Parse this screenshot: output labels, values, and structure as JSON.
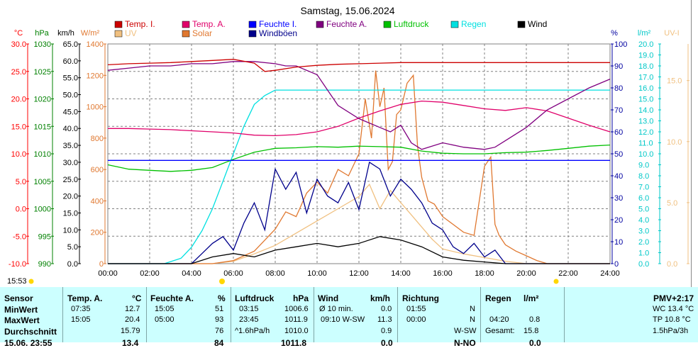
{
  "chart_data": {
    "type": "line",
    "title": "Samstag, 15.06.2024",
    "x_ticks": [
      "00:00",
      "02:00",
      "04:00",
      "06:00",
      "08:00",
      "10:00",
      "12:00",
      "14:00",
      "16:00",
      "18:00",
      "20:00",
      "22:00",
      "24:00"
    ],
    "xlim": [
      0,
      24
    ],
    "grid": true,
    "legend": [
      {
        "name": "Temp. I.",
        "color": "#cc0000"
      },
      {
        "name": "Temp. A.",
        "color": "#e0006a"
      },
      {
        "name": "Feuchte I.",
        "color": "#0000ff"
      },
      {
        "name": "Feuchte A.",
        "color": "#800080"
      },
      {
        "name": "Luftdruck",
        "color": "#00c000"
      },
      {
        "name": "Regen",
        "color": "#00e0e0"
      },
      {
        "name": "Wind",
        "color": "#000000"
      },
      {
        "name": "UV",
        "color": "#f0c080"
      },
      {
        "name": "Solar",
        "color": "#e07830"
      },
      {
        "name": "Windböen",
        "color": "#00008b"
      }
    ],
    "axes": [
      {
        "unit": "°C",
        "color": "#ff0000",
        "ticks": [
          "30.0",
          "25.0",
          "20.0",
          "15.0",
          "10.0",
          "5.0",
          "0.0",
          "-5.0",
          "-10.0"
        ],
        "ylim": [
          -10,
          30
        ]
      },
      {
        "unit": "hPa",
        "color": "#008000",
        "ticks": [
          "1030",
          "1025",
          "1020",
          "1015",
          "1010",
          "1005",
          "1000",
          "995",
          "990"
        ],
        "ylim": [
          990,
          1030
        ]
      },
      {
        "unit": "km/h",
        "color": "#000000",
        "ticks": [
          "65.0",
          "60.0",
          "55.0",
          "50.0",
          "45.0",
          "40.0",
          "35.0",
          "30.0",
          "25.0",
          "20.0",
          "15.0",
          "10.0",
          "5.0",
          "0.0"
        ],
        "ylim": [
          0,
          65
        ]
      },
      {
        "unit": "W/m²",
        "color": "#e07830",
        "ticks": [
          "1400",
          "1200",
          "1000",
          "800",
          "600",
          "400",
          "200",
          "0"
        ],
        "ylim": [
          0,
          1400
        ]
      },
      {
        "unit": "%",
        "color": "#0000a0",
        "ticks": [
          "100",
          "90",
          "80",
          "70",
          "60",
          "50",
          "40",
          "30",
          "20",
          "10",
          "0"
        ],
        "ylim": [
          0,
          100
        ]
      },
      {
        "unit": "l/m²",
        "color": "#00c8c8",
        "ticks": [
          "20.0",
          "19.0",
          "18.0",
          "17.0",
          "16.0",
          "15.0",
          "14.0",
          "13.0",
          "12.0",
          "11.0",
          "10.0",
          "9.0",
          "8.0",
          "7.0",
          "6.0",
          "5.0",
          "4.0",
          "3.0",
          "2.0",
          "1.0",
          "0.0"
        ],
        "ylim": [
          0,
          20
        ]
      },
      {
        "unit": "UV-I",
        "color": "#f0c080",
        "ticks": [
          "15.0",
          "10.0",
          "5.0",
          "0.0"
        ],
        "ylim": [
          0,
          18
        ]
      }
    ],
    "series": [
      {
        "name": "Temp. I.",
        "axis": 0,
        "x": [
          0,
          1,
          2,
          3,
          4,
          5,
          6,
          7,
          7.5,
          8,
          9,
          10,
          11,
          12,
          13,
          14,
          16,
          18,
          20,
          22,
          24
        ],
        "y": [
          26.2,
          26.4,
          26.5,
          26.6,
          26.8,
          27.0,
          27.2,
          26.5,
          25.0,
          25.2,
          25.8,
          26.1,
          26.3,
          26.4,
          26.5,
          26.6,
          26.6,
          26.6,
          26.6,
          26.6,
          26.6
        ]
      },
      {
        "name": "Temp. A.",
        "axis": 0,
        "x": [
          0,
          1,
          2,
          3,
          4,
          5,
          6,
          7,
          8,
          9,
          10,
          11,
          12,
          13,
          14,
          15,
          16,
          17,
          18,
          19,
          20,
          21,
          22,
          23,
          24
        ],
        "y": [
          14.6,
          14.6,
          14.5,
          14.4,
          14.2,
          14.0,
          13.8,
          13.4,
          13.3,
          13.5,
          14.0,
          15.0,
          16.5,
          17.8,
          19.0,
          19.6,
          19.4,
          18.8,
          18.2,
          17.9,
          18.4,
          17.8,
          16.5,
          15.2,
          14.0
        ]
      },
      {
        "name": "Feuchte I.",
        "axis": 4,
        "x": [
          0,
          2,
          4,
          6,
          8,
          10,
          12,
          14,
          16,
          18,
          20,
          22,
          24
        ],
        "y": [
          47,
          47,
          47,
          47,
          47,
          47,
          47,
          47,
          47,
          47,
          47,
          47,
          47
        ]
      },
      {
        "name": "Feuchte A.",
        "axis": 4,
        "x": [
          0,
          1,
          2,
          3,
          4,
          5,
          6,
          7,
          8,
          8.5,
          9,
          10,
          11,
          12,
          13,
          13.5,
          14,
          14.5,
          15,
          16,
          17,
          18,
          18.5,
          19,
          20,
          21,
          22,
          23,
          24
        ],
        "y": [
          88,
          89,
          90,
          90,
          91,
          91,
          92,
          92,
          91,
          90,
          90,
          86,
          72,
          66,
          62,
          60,
          63,
          55,
          52,
          55,
          53,
          52,
          53,
          56,
          62,
          70,
          75,
          80,
          84
        ]
      },
      {
        "name": "Luftdruck",
        "axis": 1,
        "x": [
          0,
          1,
          2,
          3,
          4,
          5,
          6,
          7,
          8,
          9,
          10,
          11,
          12,
          13,
          14,
          15,
          16,
          17,
          18,
          19,
          20,
          21,
          22,
          23,
          24
        ],
        "y": [
          1008,
          1007.2,
          1007,
          1006.8,
          1007,
          1007.5,
          1009,
          1010.3,
          1011,
          1011.1,
          1011.3,
          1011.2,
          1011.4,
          1011.3,
          1011.2,
          1010.5,
          1010.1,
          1010.0,
          1010.0,
          1010.2,
          1010.3,
          1010.6,
          1011.0,
          1011.4,
          1011.6
        ]
      },
      {
        "name": "Regen",
        "axis": 5,
        "x": [
          0,
          2.7,
          3.5,
          4,
          4.5,
          5,
          5.5,
          6,
          6.5,
          7,
          7.5,
          8,
          10,
          12,
          14,
          16,
          18,
          20,
          22,
          24
        ],
        "y": [
          0,
          0,
          0.5,
          1.5,
          3,
          5,
          7.5,
          10,
          12.5,
          14.5,
          15.3,
          15.8,
          15.8,
          15.8,
          15.8,
          15.8,
          15.8,
          15.8,
          15.8,
          15.8
        ]
      },
      {
        "name": "Wind",
        "axis": 2,
        "x": [
          0,
          2,
          4,
          5,
          6,
          7,
          8,
          9,
          10,
          11,
          12,
          13,
          14,
          15,
          16,
          17,
          18,
          19,
          20,
          24
        ],
        "y": [
          0,
          0,
          0,
          2,
          3,
          2,
          4,
          5,
          6,
          5,
          6,
          8,
          7,
          5,
          2,
          1,
          0.5,
          0,
          0,
          0
        ]
      },
      {
        "name": "UV",
        "axis": 6,
        "x": [
          0,
          5,
          6,
          7,
          8,
          9,
          10,
          11,
          12,
          12.5,
          13,
          13.5,
          14,
          14.5,
          15,
          15.5,
          16,
          17,
          18,
          19,
          20,
          24
        ],
        "y": [
          0,
          0,
          0.2,
          0.8,
          1.5,
          2.5,
          3.5,
          4.5,
          5.5,
          6.5,
          4.5,
          6.0,
          5.0,
          4.0,
          3.0,
          2.0,
          1.2,
          0.8,
          0.5,
          0.2,
          0,
          0
        ]
      },
      {
        "name": "Solar",
        "axis": 3,
        "x": [
          0,
          5,
          6,
          7,
          7.5,
          8,
          8.5,
          9,
          9.5,
          10,
          10.5,
          11,
          11.5,
          12,
          12.3,
          12.6,
          12.8,
          13,
          13.2,
          13.4,
          13.6,
          13.8,
          14,
          14.3,
          14.6,
          14.8,
          15,
          15.3,
          15.6,
          16,
          16.5,
          17,
          17.5,
          18,
          18.3,
          18.5,
          18.7,
          19,
          19.5,
          20,
          20.5,
          21,
          24
        ],
        "y": [
          0,
          0,
          20,
          80,
          150,
          220,
          330,
          300,
          450,
          520,
          450,
          600,
          560,
          700,
          1050,
          800,
          1230,
          1000,
          1120,
          600,
          650,
          950,
          980,
          1150,
          1200,
          750,
          550,
          400,
          380,
          300,
          250,
          200,
          180,
          620,
          680,
          250,
          180,
          120,
          80,
          50,
          20,
          0,
          0
        ]
      },
      {
        "name": "Windböen",
        "axis": 2,
        "x": [
          0,
          2,
          3,
          4,
          4.5,
          5,
          5.5,
          6,
          6.5,
          7,
          7.5,
          8,
          8.5,
          9,
          9.5,
          10,
          10.5,
          11,
          11.5,
          12,
          12.5,
          13,
          13.5,
          14,
          14.5,
          15,
          15.5,
          16,
          16.5,
          17,
          17.5,
          18,
          18.5,
          19,
          20,
          24
        ],
        "y": [
          0,
          0,
          0,
          0,
          3,
          6,
          8,
          4,
          12,
          18,
          10,
          28,
          22,
          27,
          15,
          25,
          20,
          18,
          24,
          16,
          30,
          28,
          20,
          25,
          22,
          18,
          12,
          10,
          5,
          3,
          6,
          2,
          4,
          0,
          0,
          0
        ]
      }
    ]
  },
  "left_time": "15:53",
  "stats": {
    "headers": {
      "sensor": "Sensor",
      "temp_a": "Temp. A.",
      "temp_unit": "°C",
      "feuchte_a": "Feuchte A.",
      "feuchte_unit": "%",
      "luftdruck": "Luftdruck",
      "luftdruck_unit": "hPa",
      "wind": "Wind",
      "wind_unit": "km/h",
      "richtung": "Richtung",
      "regen": "Regen",
      "regen_unit": "l/m²",
      "pmv": "PMV+2:17"
    },
    "rows": [
      {
        "label": "MinWert",
        "temp_time": "07:35",
        "temp_val": "12.7",
        "feu_time": "15:05",
        "feu_val": "51",
        "ld_time": "03:15",
        "ld_val": "1006.6",
        "wind_lbl": "Ø 10 min.",
        "wind_val": "0.0",
        "r_time": "01:55",
        "r_dir": "N",
        "rg_time": "",
        "rg_val": "",
        "pmv": "WC 13.4 °C"
      },
      {
        "label": "MaxWert",
        "temp_time": "15:05",
        "temp_val": "20.4",
        "feu_time": "05:00",
        "feu_val": "93",
        "ld_time": "23:45",
        "ld_val": "1011.9",
        "wind_lbl": "09:10  W-SW",
        "wind_val": "11.3",
        "r_time": "00:00",
        "r_dir": "N",
        "rg_time": "04:20",
        "rg_val": "0.8",
        "pmv": "TP 10.8 °C"
      },
      {
        "label": "Durchschnitt",
        "temp_time": "",
        "temp_val": "15.79",
        "feu_time": "",
        "feu_val": "76",
        "ld_time": "^1.6hPa/h",
        "ld_val": "1010.0",
        "wind_lbl": "",
        "wind_val": "0.9",
        "r_time": "",
        "r_dir": "W-SW",
        "rg_time": "Gesamt:",
        "rg_val": "15.8",
        "pmv": "1.5hPa/3h"
      }
    ],
    "partial_row": {
      "label": "15.06. 23:55",
      "temp_val": "13.4",
      "feu_val": "84",
      "ld_val": "1011.8",
      "wind_val": "0.0",
      "r_dir": "N-NO",
      "rg_val": "0.0"
    }
  }
}
